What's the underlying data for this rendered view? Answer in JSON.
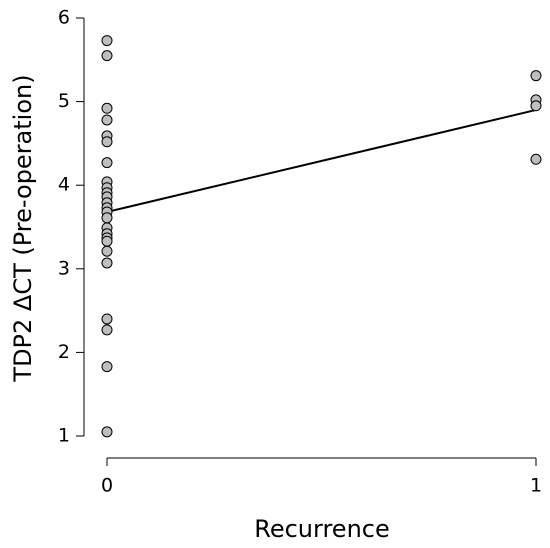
{
  "chart_data": {
    "type": "scatter",
    "x_label": "Recurrence",
    "y_label": "TDP2 ΔCT (Pre-operation)",
    "series": [
      {
        "color": "#bebebe",
        "x": [
          0,
          0,
          0,
          0,
          0,
          0,
          0,
          0,
          0,
          0,
          0,
          0,
          0,
          0,
          0,
          0,
          0,
          0,
          0,
          0,
          0,
          0,
          0,
          0,
          0,
          1,
          1,
          1,
          1
        ],
        "values": [
          5.73,
          5.55,
          4.92,
          4.78,
          4.59,
          4.52,
          4.27,
          4.04,
          3.97,
          3.91,
          3.86,
          3.79,
          3.73,
          3.68,
          3.61,
          3.49,
          3.42,
          3.37,
          3.33,
          3.21,
          3.07,
          2.4,
          2.27,
          1.83,
          1.05,
          5.31,
          5.02,
          4.95,
          4.31
        ]
      }
    ],
    "trend": {
      "x": [
        0,
        1
      ],
      "values": [
        3.68,
        4.9
      ]
    },
    "xlim": [
      0,
      1
    ],
    "ylim": [
      1,
      6
    ],
    "xticks": [
      0,
      1
    ],
    "yticks": [
      1,
      2,
      3,
      4,
      5,
      6
    ]
  }
}
